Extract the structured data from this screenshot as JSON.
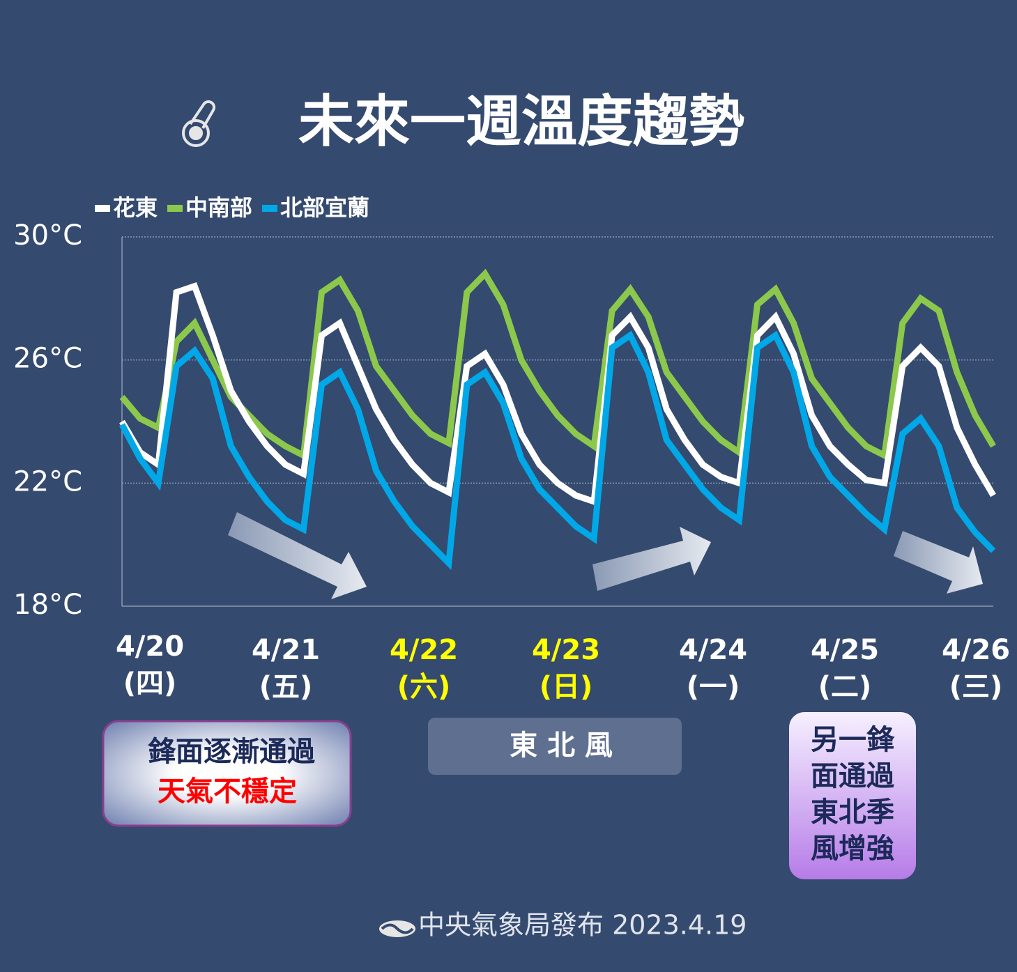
{
  "chart_data": {
    "type": "line",
    "title": "未來一週溫度趨勢",
    "xlim": [
      0,
      48
    ],
    "ylim": [
      18,
      30
    ],
    "yticks": [
      {
        "value": 18,
        "label": "18°C"
      },
      {
        "value": 22,
        "label": "22°C"
      },
      {
        "value": 26,
        "label": "26°C"
      },
      {
        "value": 30,
        "label": "30°C"
      }
    ],
    "grid": true,
    "x_labels": [
      {
        "date": "4/20",
        "day": "(四)",
        "color": "#ffffff"
      },
      {
        "date": "4/21",
        "day": "(五)",
        "color": "#ffffff"
      },
      {
        "date": "4/22",
        "day": "(六)",
        "color": "#ffff00"
      },
      {
        "date": "4/23",
        "day": "(日)",
        "color": "#ffff00"
      },
      {
        "date": "4/24",
        "day": "(一)",
        "color": "#ffffff"
      },
      {
        "date": "4/25",
        "day": "(二)",
        "color": "#ffffff"
      },
      {
        "date": "4/26",
        "day": "(三)",
        "color": "#ffffff"
      }
    ],
    "series": [
      {
        "name": "花東",
        "color": "#ffffff",
        "values": [
          24.0,
          23.0,
          22.6,
          28.2,
          28.4,
          26.8,
          25.0,
          24.0,
          23.2,
          22.6,
          22.3,
          26.8,
          27.2,
          25.8,
          24.4,
          23.4,
          22.6,
          22.0,
          21.7,
          25.8,
          26.2,
          25.2,
          23.6,
          22.6,
          22.0,
          21.6,
          21.4,
          26.8,
          27.4,
          26.4,
          24.4,
          23.4,
          22.6,
          22.2,
          22.0,
          26.8,
          27.4,
          26.2,
          24.2,
          23.2,
          22.6,
          22.1,
          22.0,
          25.8,
          26.4,
          25.8,
          23.8,
          22.6,
          21.6
        ]
      },
      {
        "name": "中南部",
        "color": "#8cc84b",
        "values": [
          24.8,
          24.1,
          23.8,
          26.6,
          27.2,
          26.0,
          24.8,
          24.2,
          23.6,
          23.2,
          22.9,
          28.2,
          28.6,
          27.6,
          25.8,
          25.0,
          24.2,
          23.6,
          23.3,
          28.2,
          28.8,
          27.8,
          26.0,
          25.0,
          24.2,
          23.6,
          23.2,
          27.6,
          28.3,
          27.4,
          25.6,
          24.8,
          24.0,
          23.4,
          23.0,
          27.8,
          28.3,
          27.2,
          25.4,
          24.6,
          23.8,
          23.2,
          22.9,
          27.2,
          28.0,
          27.6,
          25.6,
          24.2,
          23.2
        ]
      },
      {
        "name": "北部宜蘭",
        "color": "#00a8e8",
        "values": [
          23.9,
          22.8,
          22.0,
          25.8,
          26.3,
          25.4,
          23.2,
          22.2,
          21.4,
          20.8,
          20.5,
          25.2,
          25.6,
          24.4,
          22.4,
          21.4,
          20.6,
          20.0,
          19.4,
          25.2,
          25.6,
          24.6,
          22.8,
          21.8,
          21.2,
          20.6,
          20.2,
          26.4,
          26.8,
          25.6,
          23.4,
          22.6,
          21.8,
          21.2,
          20.8,
          26.4,
          26.8,
          25.6,
          23.2,
          22.2,
          21.6,
          21.0,
          20.5,
          23.6,
          24.1,
          23.2,
          21.2,
          20.4,
          19.8
        ]
      }
    ]
  },
  "notes": {
    "front": [
      "鋒面逐漸通過",
      "天氣不穩定"
    ],
    "wind": "東 北 風",
    "second_front": [
      "另一鋒",
      "面通過",
      "東北季",
      "風增強"
    ]
  },
  "footer": "中央氣象局發布 2023.4.19"
}
